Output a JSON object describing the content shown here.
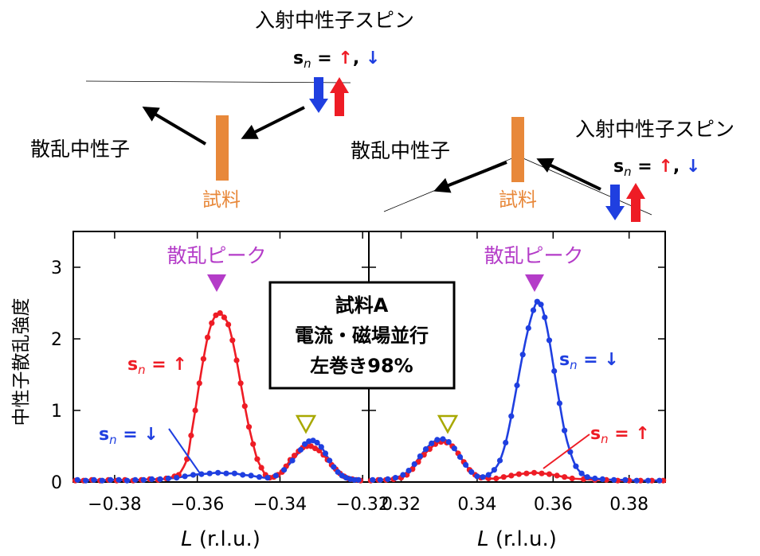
{
  "colors": {
    "up": "#ee1c25",
    "down": "#1f3fe0",
    "peak": "#b43cc8",
    "sample": "#e8883a",
    "axis": "#000000"
  },
  "diagram": {
    "left": {
      "incident_label": "入射中性子スピン",
      "spin_prefix": "s",
      "spin_sub": "n",
      "spin_eq": " = ",
      "spin_up": "↑",
      "spin_sep": ", ",
      "spin_down": "↓",
      "scattered_label": "散乱中性子",
      "sample_label": "試料"
    },
    "right": {
      "incident_label": "入射中性子スピン",
      "spin_prefix": "s",
      "spin_sub": "n",
      "spin_eq": " = ",
      "spin_up": "↑",
      "spin_sep": ", ",
      "spin_down": "↓",
      "scattered_label": "散乱中性子",
      "sample_label": "試料"
    }
  },
  "legend": {
    "up_prefix": "s",
    "up_sub": "n",
    "up_text": " = ↑",
    "down_prefix": "s",
    "down_sub": "n",
    "down_text": " = ↓"
  },
  "peak_label_left": "散乱ピーク",
  "peak_label_right": "散乱ピーク",
  "info_box": {
    "line1": "試料A",
    "line2": "電流・磁場並行",
    "line3": "左巻き98%"
  },
  "chart_data": [
    {
      "type": "scatter",
      "panel": "left",
      "xlabel_italic": "L",
      "xlabel_rest": " (r.l.u.)",
      "ylabel": "中性子散乱強度",
      "xlim": [
        -0.39,
        -0.3185
      ],
      "ylim": [
        0,
        3.5
      ],
      "xticks": [
        -0.38,
        -0.36,
        -0.34,
        -0.32
      ],
      "xtick_labels": [
        "−0.38",
        "−0.36",
        "−0.34",
        "−0.32"
      ],
      "yticks": [
        0,
        1,
        2,
        3
      ],
      "ytick_labels": [
        "0",
        "1",
        "2",
        "3"
      ],
      "series": [
        {
          "name": "s_n = ↑",
          "color": "up",
          "points": [
            [
              -0.3895,
              0.02
            ],
            [
              -0.3875,
              0.02
            ],
            [
              -0.3855,
              0.03
            ],
            [
              -0.3835,
              0.02
            ],
            [
              -0.3815,
              0.03
            ],
            [
              -0.3795,
              0.02
            ],
            [
              -0.3775,
              0.03
            ],
            [
              -0.3755,
              0.02
            ],
            [
              -0.3735,
              0.03
            ],
            [
              -0.3715,
              0.04
            ],
            [
              -0.3695,
              0.03
            ],
            [
              -0.3675,
              0.05
            ],
            [
              -0.3655,
              0.08
            ],
            [
              -0.3645,
              0.1
            ],
            [
              -0.3625,
              0.32
            ],
            [
              -0.3615,
              0.65
            ],
            [
              -0.3605,
              1.0
            ],
            [
              -0.3595,
              1.38
            ],
            [
              -0.3585,
              1.72
            ],
            [
              -0.3575,
              2.02
            ],
            [
              -0.3565,
              2.22
            ],
            [
              -0.3555,
              2.33
            ],
            [
              -0.3545,
              2.36
            ],
            [
              -0.3535,
              2.3
            ],
            [
              -0.3525,
              2.2
            ],
            [
              -0.3515,
              1.98
            ],
            [
              -0.3505,
              1.7
            ],
            [
              -0.3495,
              1.38
            ],
            [
              -0.3485,
              1.06
            ],
            [
              -0.3475,
              0.77
            ],
            [
              -0.3465,
              0.53
            ],
            [
              -0.3455,
              0.32
            ],
            [
              -0.3445,
              0.2
            ],
            [
              -0.3435,
              0.1
            ],
            [
              -0.3425,
              0.06
            ],
            [
              -0.3415,
              0.07
            ],
            [
              -0.3405,
              0.1
            ],
            [
              -0.3395,
              0.14
            ],
            [
              -0.3385,
              0.22
            ],
            [
              -0.3375,
              0.31
            ],
            [
              -0.3365,
              0.37
            ],
            [
              -0.3355,
              0.43
            ],
            [
              -0.3345,
              0.48
            ],
            [
              -0.3335,
              0.5
            ],
            [
              -0.3325,
              0.5
            ],
            [
              -0.3315,
              0.47
            ],
            [
              -0.3305,
              0.44
            ],
            [
              -0.3295,
              0.38
            ],
            [
              -0.3285,
              0.31
            ],
            [
              -0.3275,
              0.24
            ],
            [
              -0.3265,
              0.18
            ],
            [
              -0.3255,
              0.12
            ],
            [
              -0.3245,
              0.08
            ],
            [
              -0.3235,
              0.05
            ],
            [
              -0.3225,
              0.04
            ],
            [
              -0.3215,
              0.03
            ],
            [
              -0.3205,
              0.02
            ]
          ]
        },
        {
          "name": "s_n = ↓",
          "color": "down",
          "points": [
            [
              -0.389,
              0.03
            ],
            [
              -0.387,
              0.02
            ],
            [
              -0.385,
              0.03
            ],
            [
              -0.383,
              0.02
            ],
            [
              -0.381,
              0.03
            ],
            [
              -0.379,
              0.03
            ],
            [
              -0.377,
              0.02
            ],
            [
              -0.375,
              0.03
            ],
            [
              -0.373,
              0.03
            ],
            [
              -0.371,
              0.04
            ],
            [
              -0.369,
              0.04
            ],
            [
              -0.367,
              0.05
            ],
            [
              -0.365,
              0.06
            ],
            [
              -0.363,
              0.08
            ],
            [
              -0.361,
              0.1
            ],
            [
              -0.359,
              0.11
            ],
            [
              -0.357,
              0.12
            ],
            [
              -0.355,
              0.13
            ],
            [
              -0.353,
              0.12
            ],
            [
              -0.351,
              0.12
            ],
            [
              -0.349,
              0.1
            ],
            [
              -0.347,
              0.09
            ],
            [
              -0.345,
              0.07
            ],
            [
              -0.343,
              0.06
            ],
            [
              -0.341,
              0.09
            ],
            [
              -0.339,
              0.17
            ],
            [
              -0.337,
              0.3
            ],
            [
              -0.335,
              0.45
            ],
            [
              -0.334,
              0.53
            ],
            [
              -0.333,
              0.57
            ],
            [
              -0.332,
              0.58
            ],
            [
              -0.331,
              0.55
            ],
            [
              -0.33,
              0.49
            ],
            [
              -0.329,
              0.4
            ],
            [
              -0.328,
              0.3
            ],
            [
              -0.327,
              0.21
            ],
            [
              -0.326,
              0.14
            ],
            [
              -0.325,
              0.09
            ],
            [
              -0.324,
              0.06
            ],
            [
              -0.323,
              0.04
            ],
            [
              -0.322,
              0.03
            ],
            [
              -0.321,
              0.03
            ]
          ]
        }
      ]
    },
    {
      "type": "scatter",
      "panel": "right",
      "xlabel_italic": "L",
      "xlabel_rest": " (r.l.u.)",
      "xlim": [
        0.3115,
        0.3895
      ],
      "ylim": [
        0,
        3.5
      ],
      "xticks": [
        0.32,
        0.34,
        0.36,
        0.38
      ],
      "xtick_labels": [
        "0.32",
        "0.34",
        "0.36",
        "0.38"
      ],
      "series": [
        {
          "name": "s_n = ↑",
          "color": "up",
          "points": [
            [
              0.312,
              0.02
            ],
            [
              0.314,
              0.03
            ],
            [
              0.316,
              0.03
            ],
            [
              0.318,
              0.04
            ],
            [
              0.32,
              0.06
            ],
            [
              0.3215,
              0.1
            ],
            [
              0.323,
              0.18
            ],
            [
              0.3245,
              0.28
            ],
            [
              0.326,
              0.38
            ],
            [
              0.3275,
              0.46
            ],
            [
              0.329,
              0.53
            ],
            [
              0.3305,
              0.56
            ],
            [
              0.332,
              0.55
            ],
            [
              0.3335,
              0.5
            ],
            [
              0.335,
              0.4
            ],
            [
              0.3365,
              0.28
            ],
            [
              0.338,
              0.17
            ],
            [
              0.3395,
              0.1
            ],
            [
              0.341,
              0.06
            ],
            [
              0.343,
              0.05
            ],
            [
              0.345,
              0.05
            ],
            [
              0.347,
              0.07
            ],
            [
              0.349,
              0.09
            ],
            [
              0.351,
              0.11
            ],
            [
              0.353,
              0.12
            ],
            [
              0.355,
              0.13
            ],
            [
              0.357,
              0.12
            ],
            [
              0.359,
              0.11
            ],
            [
              0.361,
              0.09
            ],
            [
              0.363,
              0.07
            ],
            [
              0.365,
              0.05
            ],
            [
              0.368,
              0.04
            ],
            [
              0.371,
              0.03
            ],
            [
              0.374,
              0.03
            ],
            [
              0.377,
              0.02
            ],
            [
              0.38,
              0.02
            ],
            [
              0.383,
              0.02
            ],
            [
              0.386,
              0.02
            ],
            [
              0.389,
              0.02
            ]
          ]
        },
        {
          "name": "s_n = ↓",
          "color": "down",
          "points": [
            [
              0.3125,
              0.03
            ],
            [
              0.3145,
              0.03
            ],
            [
              0.3165,
              0.04
            ],
            [
              0.3185,
              0.06
            ],
            [
              0.3205,
              0.1
            ],
            [
              0.322,
              0.16
            ],
            [
              0.3235,
              0.25
            ],
            [
              0.325,
              0.36
            ],
            [
              0.3265,
              0.46
            ],
            [
              0.328,
              0.54
            ],
            [
              0.3295,
              0.59
            ],
            [
              0.331,
              0.6
            ],
            [
              0.3325,
              0.56
            ],
            [
              0.334,
              0.47
            ],
            [
              0.3355,
              0.35
            ],
            [
              0.337,
              0.24
            ],
            [
              0.3385,
              0.14
            ],
            [
              0.34,
              0.08
            ],
            [
              0.3415,
              0.07
            ],
            [
              0.343,
              0.1
            ],
            [
              0.3445,
              0.17
            ],
            [
              0.346,
              0.3
            ],
            [
              0.3475,
              0.55
            ],
            [
              0.349,
              0.92
            ],
            [
              0.3505,
              1.35
            ],
            [
              0.352,
              1.78
            ],
            [
              0.3535,
              2.15
            ],
            [
              0.3548,
              2.4
            ],
            [
              0.3558,
              2.52
            ],
            [
              0.3568,
              2.48
            ],
            [
              0.3578,
              2.3
            ],
            [
              0.359,
              1.98
            ],
            [
              0.3603,
              1.55
            ],
            [
              0.3617,
              1.1
            ],
            [
              0.363,
              0.72
            ],
            [
              0.3645,
              0.42
            ],
            [
              0.366,
              0.22
            ],
            [
              0.3675,
              0.12
            ],
            [
              0.369,
              0.07
            ],
            [
              0.371,
              0.05
            ],
            [
              0.373,
              0.04
            ],
            [
              0.376,
              0.03
            ],
            [
              0.379,
              0.03
            ],
            [
              0.382,
              0.02
            ],
            [
              0.385,
              0.02
            ],
            [
              0.388,
              0.02
            ]
          ]
        }
      ],
      "annotations": [
        {
          "kind": "main_peak",
          "x": 0.3555
        },
        {
          "kind": "sub_peak",
          "x": 0.331
        }
      ]
    }
  ]
}
